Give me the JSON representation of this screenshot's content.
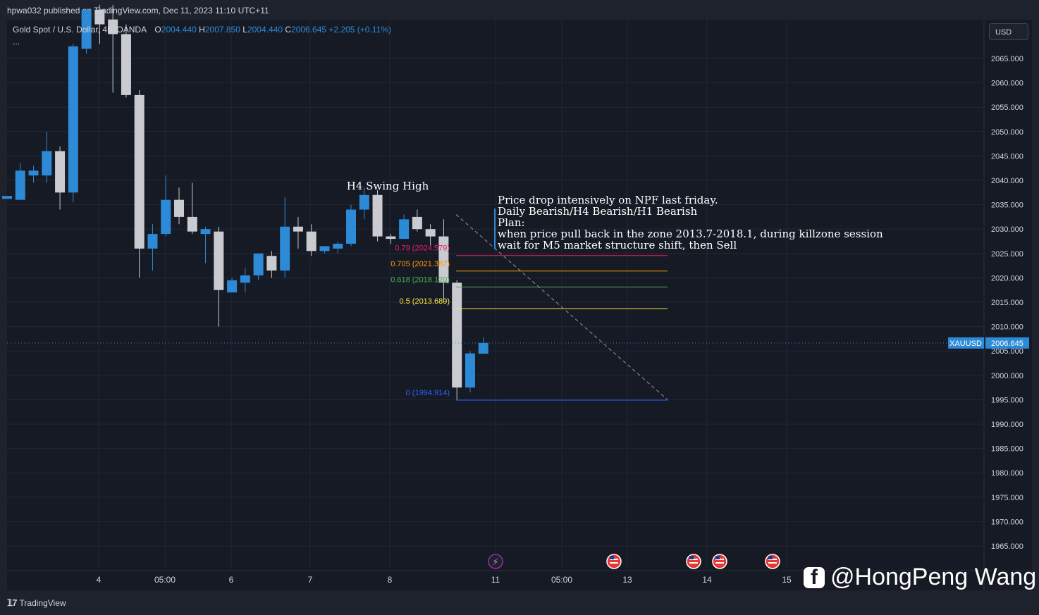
{
  "header": {
    "published": "hpwa032 published on TradingView.com, Dec 11, 2023 11:10 UTC+11"
  },
  "legend": {
    "symbol": "Gold Spot / U.S. Dollar, 4h, OANDA",
    "o_label": "O",
    "o_value": "2004.440",
    "h_label": "H",
    "h_value": "2007.850",
    "l_label": "L",
    "l_value": "2004.440",
    "c_label": "C",
    "c_value": "2006.645",
    "change": "+2.205 (+0.11%)",
    "more": "..."
  },
  "currency_button": "USD",
  "last_price": {
    "symbol": "XAUUSD",
    "value": "2006.645"
  },
  "price_axis": [
    "2065.000",
    "2060.000",
    "2055.000",
    "2050.000",
    "2045.000",
    "2040.000",
    "2035.000",
    "2030.000",
    "2025.000",
    "2020.000",
    "2015.000",
    "2010.000",
    "2005.000",
    "2000.000",
    "1995.000",
    "1990.000",
    "1985.000",
    "1980.000",
    "1975.000",
    "1970.000",
    "1965.000"
  ],
  "time_axis": [
    "4",
    "05:00",
    "6",
    "7",
    "8",
    "11",
    "05:00",
    "13",
    "14",
    "15"
  ],
  "annotations": {
    "swing_high": "H4 Swing High",
    "plan": [
      "Price drop intensively on NPF last friday.",
      "Daily Bearish/H4 Bearish/H1 Bearish",
      "Plan:",
      "when price pull back in the zone 2013.7-2018.1, during killzone session",
      "wait for M5 market structure shift, then Sell"
    ]
  },
  "fib_levels": [
    {
      "label": "0.79 (2024.579)",
      "price": 2024.579,
      "color": "#e91e63"
    },
    {
      "label": "0.705 (2021.387)",
      "price": 2021.387,
      "color": "#ff9800"
    },
    {
      "label": "0.618 (2018.120)",
      "price": 2018.12,
      "color": "#4caf50"
    },
    {
      "label": "0.5 (2013.689)",
      "price": 2013.689,
      "color": "#ffeb3b"
    },
    {
      "label": "0 (1994.914)",
      "price": 1994.914,
      "color": "#2962ff"
    }
  ],
  "colors": {
    "background": "#161a25",
    "bull": "#2d8ad6",
    "bear": "#c9cbd1",
    "grid": "#232733",
    "text": "#d1d4dc",
    "last_price": "#2d8ad6"
  },
  "chart_data": {
    "type": "candlestick",
    "title": "Gold Spot / U.S. Dollar, 4h, OANDA",
    "ylim": [
      1960,
      2070
    ],
    "candles": [
      {
        "o": 2036.2,
        "h": 2036.2,
        "l": 2036.2,
        "c": 2036.8
      },
      {
        "o": 2036.0,
        "h": 2043.5,
        "l": 2036.0,
        "c": 2042.0
      },
      {
        "o": 2041.0,
        "h": 2043.0,
        "l": 2039.5,
        "c": 2042.0
      },
      {
        "o": 2041.0,
        "h": 2050.0,
        "l": 2039.5,
        "c": 2046.0
      },
      {
        "o": 2046.0,
        "h": 2047.0,
        "l": 2034.0,
        "c": 2037.5
      },
      {
        "o": 2037.5,
        "h": 2068.0,
        "l": 2035.5,
        "c": 2067.5
      },
      {
        "o": 2067.0,
        "h": 2075.0,
        "l": 2066.0,
        "c": 2075.0
      },
      {
        "o": 2075.0,
        "h": 2076.0,
        "l": 2068.0,
        "c": 2072.0
      },
      {
        "o": 2073.0,
        "h": 2076.0,
        "l": 2058.0,
        "c": 2070.0
      },
      {
        "o": 2070.0,
        "h": 2072.0,
        "l": 2057.0,
        "c": 2057.5
      },
      {
        "o": 2057.5,
        "h": 2058.5,
        "l": 2020.0,
        "c": 2026.0
      },
      {
        "o": 2026.0,
        "h": 2031.0,
        "l": 2021.5,
        "c": 2029.0
      },
      {
        "o": 2029.0,
        "h": 2041.0,
        "l": 2028.5,
        "c": 2036.0
      },
      {
        "o": 2036.0,
        "h": 2038.5,
        "l": 2031.0,
        "c": 2032.5
      },
      {
        "o": 2032.5,
        "h": 2039.5,
        "l": 2029.0,
        "c": 2029.5
      },
      {
        "o": 2029.0,
        "h": 2030.5,
        "l": 2023.0,
        "c": 2030.0
      },
      {
        "o": 2029.5,
        "h": 2030.5,
        "l": 2010.0,
        "c": 2017.5
      },
      {
        "o": 2017.0,
        "h": 2020.0,
        "l": 2017.0,
        "c": 2019.5
      },
      {
        "o": 2019.0,
        "h": 2022.0,
        "l": 2017.0,
        "c": 2020.5
      },
      {
        "o": 2020.5,
        "h": 2025.0,
        "l": 2019.5,
        "c": 2025.0
      },
      {
        "o": 2024.5,
        "h": 2025.5,
        "l": 2020.0,
        "c": 2021.5
      },
      {
        "o": 2021.5,
        "h": 2036.5,
        "l": 2020.0,
        "c": 2030.5
      },
      {
        "o": 2030.5,
        "h": 2032.5,
        "l": 2026.0,
        "c": 2029.5
      },
      {
        "o": 2029.5,
        "h": 2031.0,
        "l": 2024.5,
        "c": 2025.5
      },
      {
        "o": 2025.5,
        "h": 2026.5,
        "l": 2025.0,
        "c": 2026.5
      },
      {
        "o": 2026.0,
        "h": 2027.5,
        "l": 2025.0,
        "c": 2027.0
      },
      {
        "o": 2027.0,
        "h": 2035.0,
        "l": 2026.5,
        "c": 2034.0
      },
      {
        "o": 2034.0,
        "h": 2038.5,
        "l": 2032.0,
        "c": 2037.0
      },
      {
        "o": 2037.0,
        "h": 2038.0,
        "l": 2027.5,
        "c": 2028.5
      },
      {
        "o": 2028.5,
        "h": 2029.0,
        "l": 2027.0,
        "c": 2028.0
      },
      {
        "o": 2028.0,
        "h": 2033.0,
        "l": 2028.0,
        "c": 2032.0
      },
      {
        "o": 2032.5,
        "h": 2034.0,
        "l": 2029.5,
        "c": 2030.0
      },
      {
        "o": 2030.0,
        "h": 2031.0,
        "l": 2026.5,
        "c": 2028.5
      },
      {
        "o": 2028.5,
        "h": 2032.0,
        "l": 2015.0,
        "c": 2019.0
      },
      {
        "o": 2019.0,
        "h": 2019.5,
        "l": 1995.0,
        "c": 1997.5
      },
      {
        "o": 1997.5,
        "h": 2005.0,
        "l": 1996.5,
        "c": 2004.5
      },
      {
        "o": 2004.44,
        "h": 2007.85,
        "l": 2004.44,
        "c": 2006.645
      }
    ]
  }
}
